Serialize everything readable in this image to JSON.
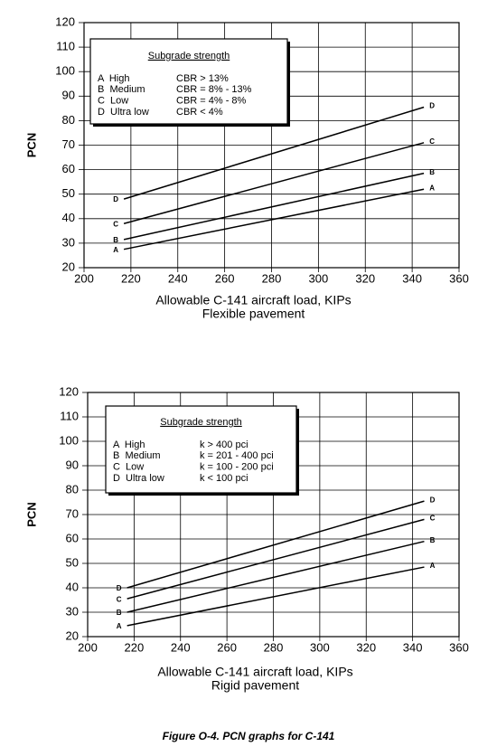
{
  "chart_data": [
    {
      "type": "line",
      "subtitle": "Flexible pavement",
      "x_label": "Allowable C-141 aircraft load, KIPs",
      "y_label": "PCN",
      "xlim": [
        200,
        360
      ],
      "xticks": [
        200,
        220,
        240,
        260,
        280,
        300,
        320,
        340,
        360
      ],
      "ylim": [
        20,
        120
      ],
      "yticks": [
        20,
        30,
        40,
        50,
        60,
        70,
        80,
        90,
        100,
        110,
        120
      ],
      "grid": true,
      "legend_title": "Subgrade strength",
      "legend_rows": [
        [
          "A  High",
          "CBR > 13%"
        ],
        [
          "B  Medium",
          "CBR = 8% - 13%"
        ],
        [
          "C  Low",
          "CBR = 4% - 8%"
        ],
        [
          "D  Ultra low",
          "CBR < 4%"
        ]
      ],
      "series": [
        {
          "name": "A",
          "color": "#000000",
          "x": [
            217,
            345
          ],
          "values": [
            27.5,
            52
          ]
        },
        {
          "name": "B",
          "color": "#000000",
          "x": [
            217,
            345
          ],
          "values": [
            31.5,
            58.5
          ]
        },
        {
          "name": "C",
          "color": "#000000",
          "x": [
            217,
            345
          ],
          "values": [
            38,
            71
          ]
        },
        {
          "name": "D",
          "color": "#000000",
          "x": [
            217,
            345
          ],
          "values": [
            48,
            85.5
          ]
        }
      ]
    },
    {
      "type": "line",
      "subtitle": "Rigid pavement",
      "x_label": "Allowable C-141 aircraft load, KIPs",
      "y_label": "PCN",
      "xlim": [
        200,
        360
      ],
      "xticks": [
        200,
        220,
        240,
        260,
        280,
        300,
        320,
        340,
        360
      ],
      "ylim": [
        20,
        120
      ],
      "yticks": [
        20,
        30,
        40,
        50,
        60,
        70,
        80,
        90,
        100,
        110,
        120
      ],
      "grid": true,
      "legend_title": "Subgrade strength",
      "legend_rows": [
        [
          "A  High",
          "k > 400 pci"
        ],
        [
          "B  Medium",
          "k = 201 - 400 pci"
        ],
        [
          "C  Low",
          "k = 100 - 200 pci"
        ],
        [
          "D  Ultra low",
          "k < 100 pci"
        ]
      ],
      "series": [
        {
          "name": "A",
          "color": "#000000",
          "x": [
            217,
            345
          ],
          "values": [
            24.5,
            48.5
          ]
        },
        {
          "name": "B",
          "color": "#000000",
          "x": [
            217,
            345
          ],
          "values": [
            30,
            59
          ]
        },
        {
          "name": "C",
          "color": "#000000",
          "x": [
            217,
            345
          ],
          "values": [
            35.5,
            68
          ]
        },
        {
          "name": "D",
          "color": "#000000",
          "x": [
            217,
            345
          ],
          "values": [
            40,
            75.5
          ]
        }
      ]
    }
  ],
  "caption": "Figure O-4.  PCN graphs for C-141"
}
